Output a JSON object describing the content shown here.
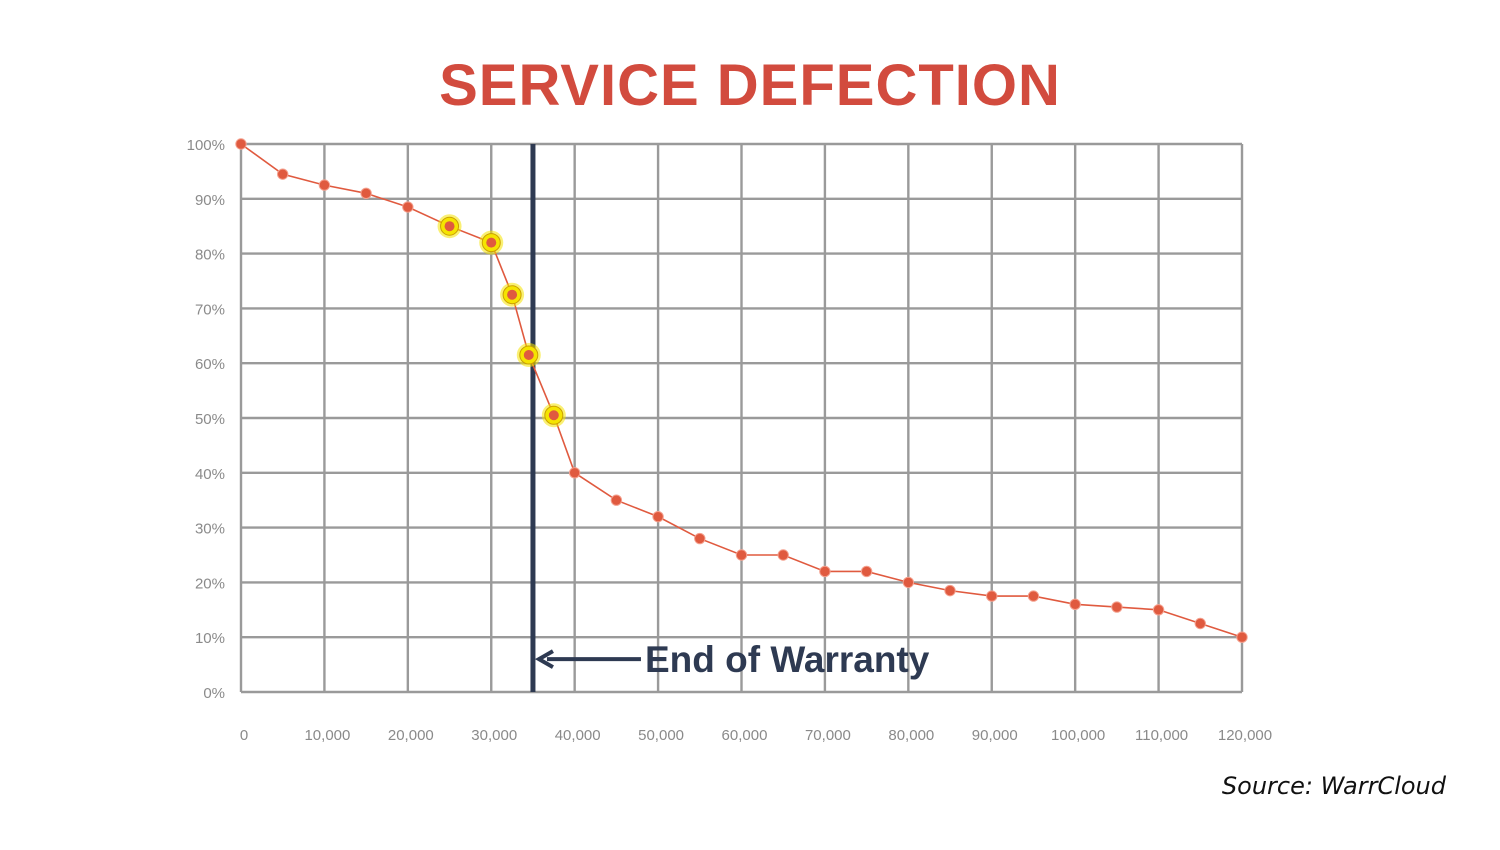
{
  "title": "SERVICE DEFECTION",
  "source": "Source: WarrCloud",
  "chart_data": {
    "type": "line",
    "title": "SERVICE DEFECTION",
    "xlabel": "",
    "ylabel": "",
    "xlim": [
      0,
      120000
    ],
    "ylim": [
      0,
      100
    ],
    "grid": true,
    "x_ticks": [
      0,
      10000,
      20000,
      30000,
      40000,
      50000,
      60000,
      70000,
      80000,
      90000,
      100000,
      110000,
      120000
    ],
    "x_tick_labels": [
      "0",
      "10,000",
      "20,000",
      "30,000",
      "40,000",
      "50,000",
      "60,000",
      "70,000",
      "80,000",
      "90,000",
      "100,000",
      "110,000",
      "120,000"
    ],
    "y_ticks": [
      0,
      10,
      20,
      30,
      40,
      50,
      60,
      70,
      80,
      90,
      100
    ],
    "y_tick_labels": [
      "0%",
      "10%",
      "20%",
      "30%",
      "40%",
      "50%",
      "60%",
      "70%",
      "80%",
      "90%",
      "100%"
    ],
    "series": [
      {
        "color": "#e05a3f",
        "x": [
          0,
          5000,
          10000,
          15000,
          20000,
          25000,
          30000,
          32500,
          34500,
          37500,
          40000,
          45000,
          50000,
          55000,
          60000,
          65000,
          70000,
          75000,
          80000,
          85000,
          90000,
          95000,
          100000,
          105000,
          110000,
          115000,
          120000
        ],
        "y": [
          100,
          94.5,
          92.5,
          91,
          88.5,
          85,
          82,
          72.5,
          61.5,
          50.5,
          40,
          35,
          32,
          28,
          25,
          25,
          22,
          22,
          20,
          18.5,
          17.5,
          17.5,
          16,
          15.5,
          15,
          12.5,
          10
        ],
        "highlighted_x": [
          25000,
          30000,
          32500,
          34500,
          37500
        ]
      }
    ],
    "annotations": [
      {
        "text": "End of Warranty",
        "x": 35000,
        "y": 6,
        "type": "vertical-line-with-arrow",
        "color": "#2e3a52"
      }
    ],
    "highlight_color": "#f5e400"
  }
}
